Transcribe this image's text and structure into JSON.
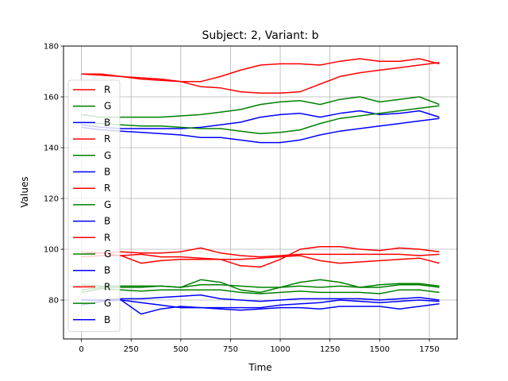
{
  "chart_data": {
    "type": "line",
    "title": "Subject: 2, Variant: b",
    "xlabel": "Time",
    "ylabel": "Values",
    "xlim": [
      -90,
      1890
    ],
    "ylim": [
      64.7,
      180
    ],
    "xticks": [
      0,
      250,
      500,
      750,
      1000,
      1250,
      1500,
      1750
    ],
    "yticks": [
      80,
      100,
      120,
      140,
      160,
      180
    ],
    "grid": true,
    "legend_position": "left",
    "colors": {
      "R": "#ff0000",
      "G": "#008000",
      "B": "#0000ff",
      "grid": "#b0b0b0"
    },
    "series": [
      {
        "name": "R",
        "color": "#ff0000",
        "x": [
          0,
          100,
          200,
          300,
          400,
          500,
          600,
          700,
          800,
          900,
          1000,
          1100,
          1200,
          1300,
          1400,
          1500,
          1600,
          1700,
          1800
        ],
        "y": [
          169,
          169,
          168,
          167,
          166.5,
          166,
          166,
          168,
          170.5,
          172.5,
          173,
          173,
          172.5,
          174,
          175,
          174,
          174,
          175,
          173
        ]
      },
      {
        "name": "G",
        "color": "#008000",
        "x": [
          0,
          100,
          200,
          300,
          400,
          500,
          600,
          700,
          800,
          900,
          1000,
          1100,
          1200,
          1300,
          1400,
          1500,
          1600,
          1700,
          1800
        ],
        "y": [
          153,
          152,
          152,
          152,
          152,
          152.5,
          153,
          154,
          155,
          157,
          158,
          158.5,
          157,
          159,
          160,
          158,
          159,
          160,
          157
        ]
      },
      {
        "name": "B",
        "color": "#0000ff",
        "x": [
          0,
          100,
          200,
          300,
          400,
          500,
          600,
          700,
          800,
          900,
          1000,
          1100,
          1200,
          1300,
          1400,
          1500,
          1600,
          1700,
          1800
        ],
        "y": [
          149,
          148,
          147.5,
          147.5,
          147.5,
          147.5,
          148,
          149,
          150,
          152,
          153,
          153.5,
          152,
          153.5,
          154.5,
          153,
          153.5,
          154.5,
          152
        ]
      },
      {
        "name": "R",
        "color": "#ff0000",
        "x": [
          0,
          100,
          200,
          300,
          400,
          500,
          600,
          700,
          800,
          900,
          1000,
          1100,
          1200,
          1300,
          1400,
          1500,
          1600,
          1700,
          1800
        ],
        "y": [
          169,
          168.5,
          168,
          167.5,
          167,
          166,
          164,
          163.5,
          162,
          161.5,
          161.5,
          162,
          165,
          168,
          169.5,
          170.5,
          171.5,
          172.5,
          173.5
        ]
      },
      {
        "name": "G",
        "color": "#008000",
        "x": [
          0,
          100,
          200,
          300,
          400,
          500,
          600,
          700,
          800,
          900,
          1000,
          1100,
          1200,
          1300,
          1400,
          1500,
          1600,
          1700,
          1800
        ],
        "y": [
          150,
          149.5,
          149,
          148.5,
          148.5,
          148,
          147.5,
          147.5,
          146.5,
          145.5,
          146,
          147,
          149.5,
          151.5,
          152.5,
          153.5,
          154.5,
          155.5,
          156.5
        ]
      },
      {
        "name": "B",
        "color": "#0000ff",
        "x": [
          0,
          100,
          200,
          300,
          400,
          500,
          600,
          700,
          800,
          900,
          1000,
          1100,
          1200,
          1300,
          1400,
          1500,
          1600,
          1700,
          1800
        ],
        "y": [
          148,
          147,
          146.5,
          146,
          145.5,
          145,
          144,
          144,
          143,
          142,
          142,
          143,
          145,
          146.5,
          147.5,
          148.5,
          149.5,
          150.5,
          151.5
        ]
      },
      {
        "name": "R",
        "color": "#ff0000",
        "x": [
          0,
          100,
          200,
          300,
          400,
          500,
          600,
          700,
          800,
          900,
          1000,
          1100,
          1200,
          1300,
          1400,
          1500,
          1600,
          1700,
          1800
        ],
        "y": [
          98,
          98.5,
          99,
          98.5,
          98.5,
          99,
          100.5,
          98.5,
          97.5,
          97,
          97.5,
          98,
          98,
          98,
          98,
          98,
          98,
          97.5,
          98
        ]
      },
      {
        "name": "G",
        "color": "#008000",
        "x": [
          0,
          100,
          200,
          300,
          400,
          500,
          600,
          700,
          800,
          900,
          1000,
          1100,
          1200,
          1300,
          1400,
          1500,
          1600,
          1700,
          1800
        ],
        "y": [
          86,
          85.5,
          85.5,
          85.5,
          85.5,
          85,
          88,
          87,
          84,
          83,
          85,
          87,
          88,
          87,
          85,
          86,
          86.5,
          86.5,
          85.5
        ]
      },
      {
        "name": "B",
        "color": "#0000ff",
        "x": [
          0,
          100,
          200,
          300,
          400,
          500,
          600,
          700,
          800,
          900,
          1000,
          1100,
          1200,
          1300,
          1400,
          1500,
          1600,
          1700,
          1800
        ],
        "y": [
          80,
          80,
          80.5,
          80.5,
          81,
          81.5,
          82,
          80.5,
          80,
          79.5,
          80,
          80.5,
          80.5,
          80.5,
          80.5,
          80,
          80.5,
          81,
          80
        ]
      },
      {
        "name": "R",
        "color": "#ff0000",
        "x": [
          0,
          100,
          200,
          300,
          400,
          500,
          600,
          700,
          800,
          900,
          1000,
          1100,
          1200,
          1300,
          1400,
          1500,
          1600,
          1700,
          1800
        ],
        "y": [
          99,
          98.5,
          97.5,
          98,
          97,
          97,
          96.5,
          96,
          93.5,
          93,
          96,
          100,
          101,
          101,
          100,
          99.5,
          100.5,
          100,
          99
        ]
      },
      {
        "name": "G",
        "color": "#008000",
        "x": [
          0,
          100,
          200,
          300,
          400,
          500,
          600,
          700,
          800,
          900,
          1000,
          1100,
          1200,
          1300,
          1400,
          1500,
          1600,
          1700,
          1800
        ],
        "y": [
          84,
          85,
          85,
          85,
          85.5,
          85,
          86,
          86,
          85.5,
          85,
          85,
          85.5,
          85,
          85.5,
          85,
          85,
          86,
          86,
          85
        ]
      },
      {
        "name": "B",
        "color": "#0000ff",
        "x": [
          0,
          100,
          200,
          300,
          400,
          500,
          600,
          700,
          800,
          900,
          1000,
          1100,
          1200,
          1300,
          1400,
          1500,
          1600,
          1700,
          1800
        ],
        "y": [
          80,
          80,
          80,
          79,
          78,
          77,
          77,
          76.5,
          76,
          76.5,
          77,
          77,
          76.5,
          77.5,
          77.5,
          77.5,
          76.5,
          77.5,
          78.5
        ]
      },
      {
        "name": "R",
        "color": "#ff0000",
        "x": [
          0,
          100,
          200,
          300,
          400,
          500,
          600,
          700,
          800,
          900,
          1000,
          1100,
          1200,
          1300,
          1400,
          1500,
          1600,
          1700,
          1800
        ],
        "y": [
          97,
          97.5,
          97.5,
          94.5,
          95.5,
          96,
          96,
          96,
          96,
          96.5,
          97,
          97.5,
          95.5,
          94.5,
          95,
          95.5,
          96,
          96.5,
          94.5
        ]
      },
      {
        "name": "G",
        "color": "#008000",
        "x": [
          0,
          100,
          200,
          300,
          400,
          500,
          600,
          700,
          800,
          900,
          1000,
          1100,
          1200,
          1300,
          1400,
          1500,
          1600,
          1700,
          1800
        ],
        "y": [
          83,
          84.5,
          84,
          83.5,
          84,
          84,
          84,
          84,
          83,
          82.5,
          83,
          83.5,
          83,
          83,
          83,
          82.5,
          84,
          84,
          83
        ]
      },
      {
        "name": "B",
        "color": "#0000ff",
        "x": [
          0,
          100,
          200,
          300,
          400,
          500,
          600,
          700,
          800,
          900,
          1000,
          1100,
          1200,
          1300,
          1400,
          1500,
          1600,
          1700,
          1800
        ],
        "y": [
          78,
          79.5,
          80,
          74.5,
          76.5,
          77.5,
          77,
          77,
          77,
          77,
          78,
          78.5,
          79,
          80,
          79.5,
          79,
          79.5,
          80,
          79.5
        ]
      }
    ]
  }
}
